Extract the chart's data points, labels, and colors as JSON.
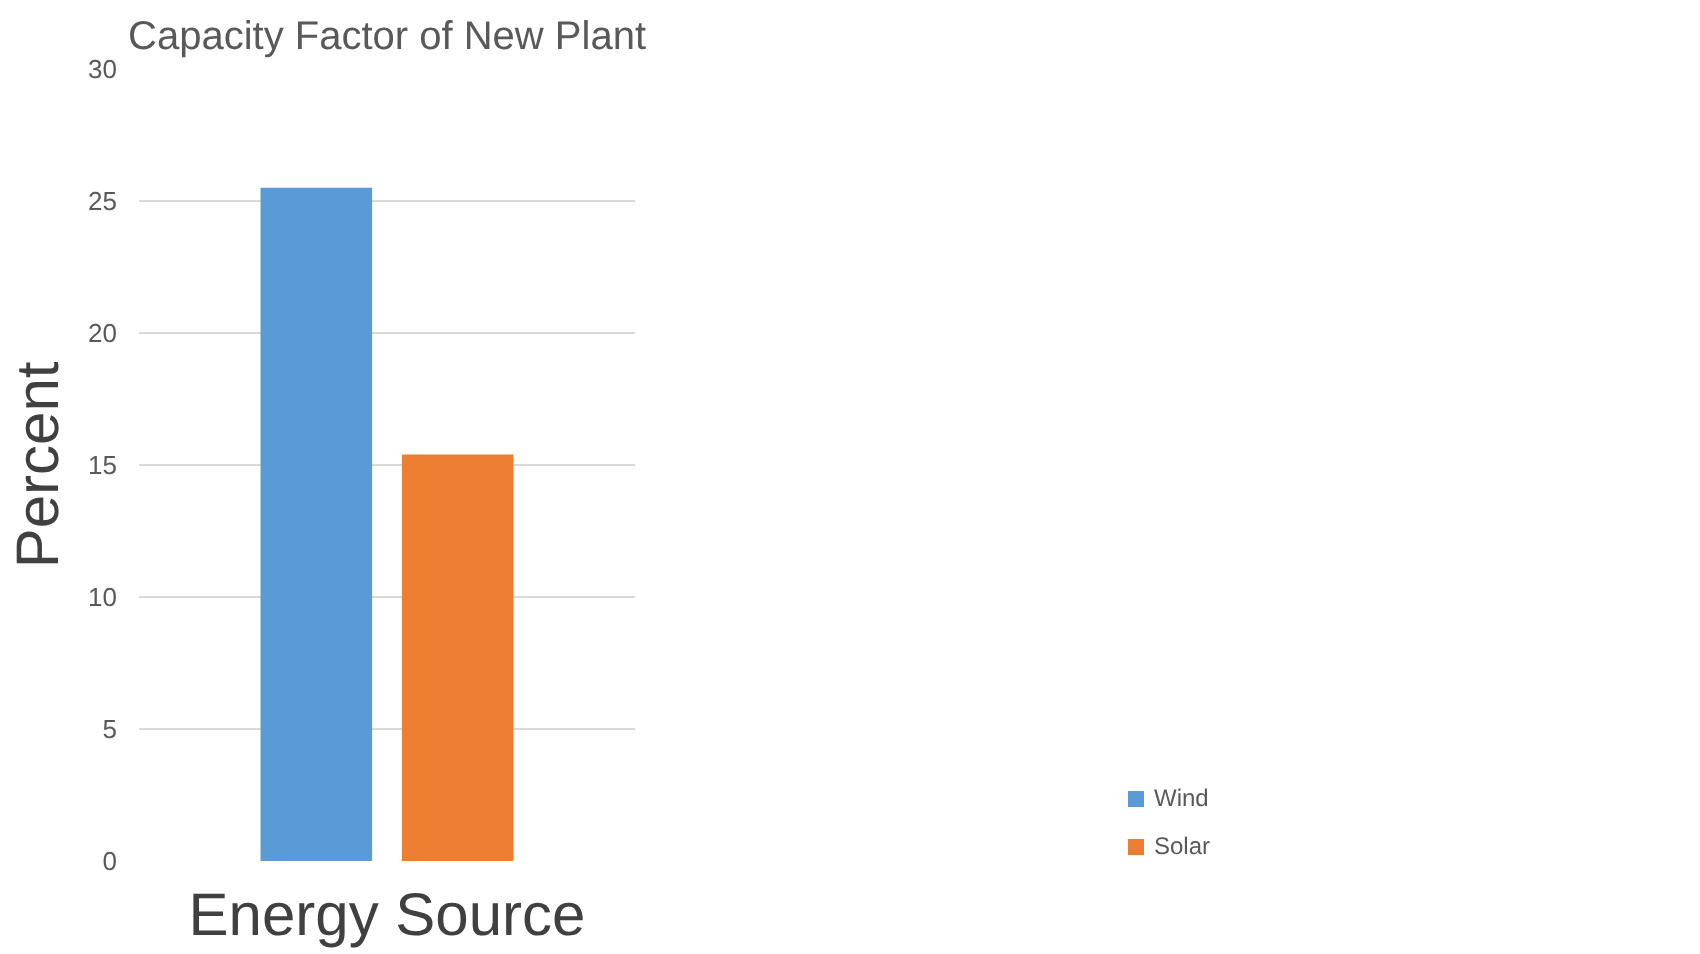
{
  "chart_data": {
    "type": "bar",
    "title": "Capacity Factor of New Plant",
    "xlabel": "Energy Source",
    "ylabel": "Percent",
    "categories": [
      null
    ],
    "series": [
      {
        "name": "Wind",
        "color": "#5b9bd5",
        "values": [
          25.5
        ]
      },
      {
        "name": "Solar",
        "color": "#ed7d31",
        "values": [
          15.4
        ]
      }
    ],
    "ylim": [
      0,
      30
    ],
    "yticks": [
      0,
      5,
      10,
      15,
      20,
      25,
      30
    ],
    "grid": "y",
    "legend": "bottom right"
  }
}
